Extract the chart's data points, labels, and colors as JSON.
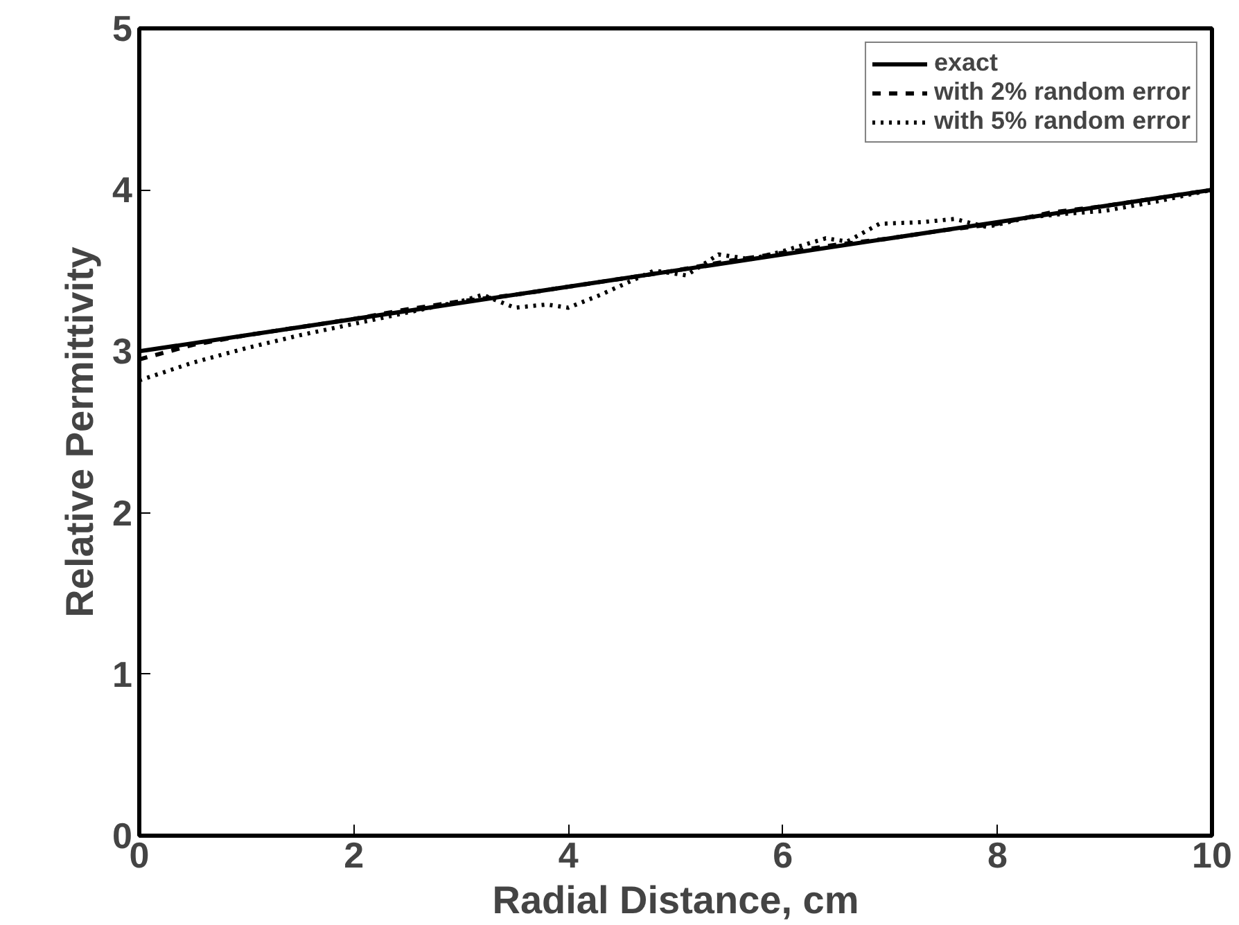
{
  "chart_data": {
    "type": "line",
    "xlabel": "Radial Distance, cm",
    "ylabel": "Relative Permittivity",
    "xlim": [
      0,
      10
    ],
    "ylim": [
      0,
      5
    ],
    "xticks": [
      0,
      2,
      4,
      6,
      8,
      10
    ],
    "yticks": [
      0,
      1,
      2,
      3,
      4,
      5
    ],
    "grid": false,
    "legend": "top right",
    "series": [
      {
        "name": "exact",
        "color": "#000000",
        "line_style": "solid",
        "x": [
          0,
          10
        ],
        "values": [
          3.0,
          4.0
        ]
      },
      {
        "name": "with 2% random error",
        "color": "#000000",
        "line_style": "dashed",
        "x": [
          0,
          0.5,
          1,
          1.5,
          2,
          2.5,
          3,
          3.5,
          4,
          4.5,
          5,
          5.5,
          6,
          6.5,
          7,
          7.5,
          8,
          8.5,
          9,
          9.5,
          10
        ],
        "values": [
          2.95,
          3.04,
          3.1,
          3.15,
          3.2,
          3.26,
          3.31,
          3.35,
          3.4,
          3.45,
          3.5,
          3.56,
          3.61,
          3.66,
          3.7,
          3.75,
          3.79,
          3.86,
          3.9,
          3.95,
          4.0
        ]
      },
      {
        "name": "with 5% random error",
        "color": "#000000",
        "line_style": "dotted",
        "x": [
          0,
          0.5,
          1,
          1.5,
          2,
          2.5,
          3,
          3.2,
          3.5,
          3.8,
          4,
          4.3,
          4.8,
          5.1,
          5.4,
          5.7,
          6,
          6.4,
          6.6,
          6.9,
          7.3,
          7.6,
          7.9,
          8.3,
          8.6,
          9,
          9.5,
          10
        ],
        "values": [
          2.82,
          2.93,
          3.02,
          3.1,
          3.17,
          3.24,
          3.31,
          3.35,
          3.27,
          3.29,
          3.27,
          3.35,
          3.5,
          3.47,
          3.6,
          3.57,
          3.62,
          3.7,
          3.68,
          3.79,
          3.8,
          3.82,
          3.77,
          3.83,
          3.85,
          3.87,
          3.93,
          4.0
        ]
      }
    ]
  }
}
